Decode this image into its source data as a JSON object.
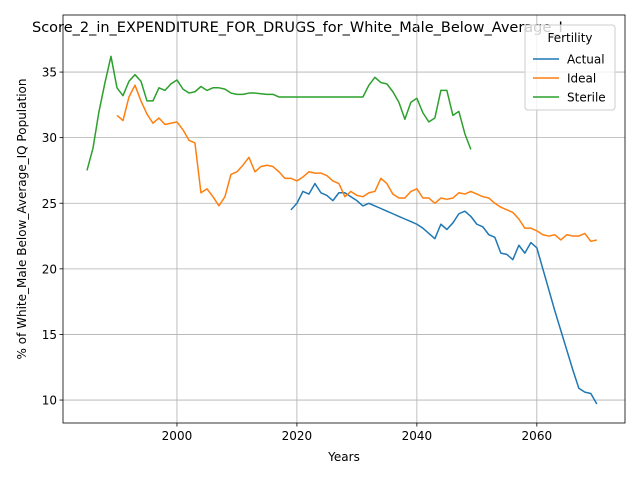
{
  "chart_data": {
    "type": "line",
    "title": "Score_2_in_EXPENDITURE_FOR_DRUGS_for_White_Male_Below_Average_I",
    "xlabel": "Years",
    "ylabel": "% of White_Male Below_Average_IQ Population",
    "x": [
      1985,
      1986,
      1987,
      1988,
      1989,
      1990,
      1991,
      1992,
      1993,
      1994,
      1995,
      1996,
      1997,
      1998,
      1999,
      2000,
      2001,
      2002,
      2003,
      2004,
      2005,
      2006,
      2007,
      2008,
      2009,
      2010,
      2011,
      2012,
      2013,
      2014,
      2015,
      2016,
      2017,
      2018,
      2019,
      2020,
      2021,
      2022,
      2023,
      2024,
      2025,
      2026,
      2027,
      2028,
      2029,
      2030,
      2031,
      2032,
      2033,
      2034,
      2035,
      2036,
      2037,
      2038,
      2039,
      2040,
      2041,
      2042,
      2043,
      2044,
      2045,
      2046,
      2047,
      2048,
      2049,
      2050,
      2051,
      2052,
      2053,
      2054,
      2055,
      2056,
      2057,
      2058,
      2059,
      2060,
      2061,
      2062,
      2063,
      2064,
      2065,
      2066,
      2067,
      2068,
      2069,
      2070
    ],
    "series": [
      {
        "name": "Actual",
        "color": "#1f77b4",
        "values": [
          null,
          null,
          null,
          null,
          null,
          null,
          null,
          null,
          null,
          null,
          null,
          null,
          null,
          null,
          null,
          null,
          null,
          null,
          null,
          null,
          null,
          null,
          null,
          null,
          null,
          null,
          null,
          null,
          null,
          null,
          null,
          null,
          null,
          null,
          24.5,
          25.0,
          25.9,
          25.7,
          26.5,
          25.8,
          25.6,
          25.2,
          25.8,
          25.8,
          25.5,
          25.2,
          24.8,
          25.0,
          24.8,
          24.6,
          24.4,
          24.2,
          24.0,
          23.8,
          23.6,
          23.4,
          23.1,
          22.7,
          22.3,
          23.4,
          23.0,
          23.5,
          24.2,
          24.4,
          24.0,
          23.4,
          23.2,
          22.6,
          22.4,
          21.2,
          21.1,
          20.7,
          21.8,
          21.2,
          22.0,
          21.6,
          20.0,
          18.4,
          16.8,
          15.3,
          13.8,
          12.3,
          10.9,
          10.6,
          10.5,
          9.7
        ]
      },
      {
        "name": "Ideal",
        "color": "#ff7f0e",
        "values": [
          null,
          null,
          null,
          null,
          null,
          31.7,
          31.3,
          33.1,
          34.0,
          32.8,
          31.8,
          31.1,
          31.5,
          31.0,
          31.1,
          31.2,
          30.6,
          29.8,
          29.6,
          25.8,
          26.1,
          25.5,
          24.8,
          25.5,
          27.2,
          27.4,
          27.9,
          28.5,
          27.4,
          27.8,
          27.9,
          27.8,
          27.4,
          26.9,
          26.9,
          26.7,
          27.0,
          27.4,
          27.3,
          27.3,
          27.1,
          26.7,
          26.5,
          25.5,
          25.9,
          25.6,
          25.5,
          25.8,
          25.9,
          26.9,
          26.5,
          25.7,
          25.4,
          25.4,
          25.9,
          26.1,
          25.4,
          25.4,
          25.0,
          25.4,
          25.3,
          25.4,
          25.8,
          25.7,
          25.9,
          25.7,
          25.5,
          25.4,
          25.0,
          24.7,
          24.5,
          24.3,
          23.8,
          23.1,
          23.1,
          22.9,
          22.6,
          22.5,
          22.6,
          22.2,
          22.6,
          22.5,
          22.5,
          22.7,
          22.1,
          22.2
        ]
      },
      {
        "name": "Sterile",
        "color": "#2ca02c",
        "values": [
          27.5,
          29.2,
          32.0,
          34.2,
          36.2,
          33.8,
          33.2,
          34.3,
          34.8,
          34.3,
          32.8,
          32.8,
          33.8,
          33.6,
          34.1,
          34.4,
          33.7,
          33.4,
          33.5,
          33.9,
          33.6,
          33.8,
          33.8,
          33.7,
          33.4,
          33.3,
          33.3,
          33.4,
          33.4,
          33.35,
          33.3,
          33.3,
          33.1,
          33.1,
          33.1,
          33.1,
          33.1,
          33.1,
          33.1,
          33.1,
          33.1,
          33.1,
          33.1,
          33.1,
          33.1,
          33.1,
          33.1,
          34.0,
          34.6,
          34.2,
          34.1,
          33.5,
          32.7,
          31.4,
          32.7,
          33.0,
          31.9,
          31.2,
          31.5,
          33.6,
          33.6,
          31.7,
          32.0,
          30.3,
          29.1,
          null,
          null,
          null,
          null,
          null,
          null,
          null,
          null,
          null,
          null,
          null,
          null,
          null,
          null,
          null,
          null,
          null,
          null,
          null,
          null,
          null
        ]
      }
    ],
    "xlim": [
      1981,
      2074.7
    ],
    "ylim": [
      8.25,
      39.35
    ],
    "xticks": [
      2000,
      2020,
      2040,
      2060
    ],
    "yticks": [
      10,
      15,
      20,
      25,
      30,
      35
    ],
    "grid": true,
    "legend_title": "Fertility",
    "legend_loc": "upper right"
  }
}
